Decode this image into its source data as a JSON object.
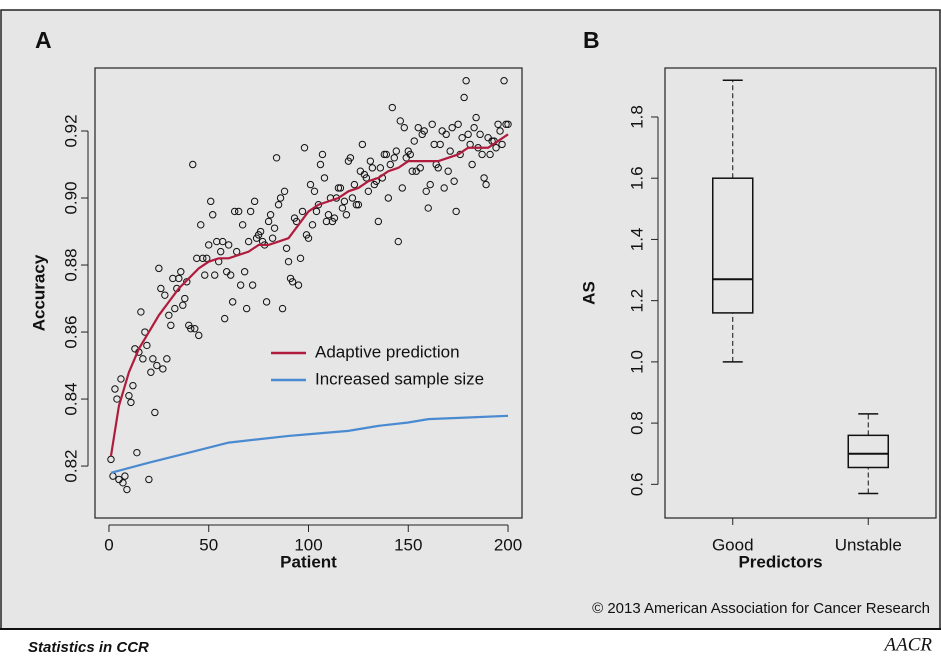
{
  "chart_data": [
    {
      "type": "scatter",
      "title": "A",
      "xlabel": "Patient",
      "ylabel": "Accuracy",
      "x": [
        1,
        2,
        3,
        4,
        5,
        6,
        7,
        8,
        9,
        10,
        11,
        12,
        13,
        14,
        15,
        16,
        17,
        18,
        19,
        20,
        21,
        22,
        23,
        24,
        25,
        26,
        27,
        28,
        29,
        30,
        31,
        32,
        33,
        34,
        35,
        36,
        37,
        38,
        39,
        40,
        41,
        42,
        43,
        44,
        45,
        46,
        47,
        48,
        49,
        50,
        51,
        52,
        53,
        54,
        55,
        56,
        57,
        58,
        59,
        60,
        61,
        62,
        63,
        64,
        65,
        66,
        67,
        68,
        69,
        70,
        71,
        72,
        73,
        74,
        75,
        76,
        77,
        78,
        79,
        80,
        81,
        82,
        83,
        84,
        85,
        86,
        87,
        88,
        89,
        90,
        91,
        92,
        93,
        94,
        95,
        96,
        97,
        98,
        99,
        100,
        101,
        102,
        103,
        104,
        105,
        106,
        107,
        108,
        109,
        110,
        111,
        112,
        113,
        114,
        115,
        116,
        117,
        118,
        119,
        120,
        121,
        122,
        123,
        124,
        125,
        126,
        127,
        128,
        129,
        130,
        131,
        132,
        133,
        134,
        135,
        136,
        137,
        138,
        139,
        140,
        141,
        142,
        143,
        144,
        145,
        146,
        147,
        148,
        149,
        150,
        151,
        152,
        153,
        154,
        155,
        156,
        157,
        158,
        159,
        160,
        161,
        162,
        163,
        164,
        165,
        166,
        167,
        168,
        169,
        170,
        171,
        172,
        173,
        174,
        175,
        176,
        177,
        178,
        179,
        180,
        181,
        182,
        183,
        184,
        185,
        186,
        187,
        188,
        189,
        190,
        191,
        192,
        193,
        194,
        195,
        196,
        197,
        198,
        199,
        200
      ],
      "values": [
        0.822,
        0.817,
        0.843,
        0.84,
        0.816,
        0.846,
        0.815,
        0.817,
        0.813,
        0.841,
        0.839,
        0.844,
        0.855,
        0.824,
        0.854,
        0.866,
        0.852,
        0.86,
        0.856,
        0.816,
        0.848,
        0.852,
        0.836,
        0.85,
        0.879,
        0.873,
        0.849,
        0.871,
        0.852,
        0.865,
        0.862,
        0.876,
        0.867,
        0.873,
        0.876,
        0.878,
        0.868,
        0.87,
        0.875,
        0.862,
        0.861,
        0.91,
        0.861,
        0.882,
        0.859,
        0.892,
        0.882,
        0.877,
        0.882,
        0.886,
        0.899,
        0.895,
        0.877,
        0.887,
        0.881,
        0.884,
        0.887,
        0.864,
        0.878,
        0.886,
        0.877,
        0.869,
        0.896,
        0.884,
        0.896,
        0.874,
        0.892,
        0.878,
        0.867,
        0.887,
        0.896,
        0.874,
        0.899,
        0.888,
        0.889,
        0.89,
        0.887,
        0.886,
        0.869,
        0.893,
        0.895,
        0.888,
        0.891,
        0.912,
        0.898,
        0.9,
        0.867,
        0.902,
        0.885,
        0.881,
        0.876,
        0.875,
        0.894,
        0.893,
        0.874,
        0.882,
        0.896,
        0.915,
        0.889,
        0.888,
        0.904,
        0.892,
        0.902,
        0.896,
        0.898,
        0.91,
        0.913,
        0.906,
        0.893,
        0.895,
        0.9,
        0.893,
        0.894,
        0.9,
        0.903,
        0.903,
        0.897,
        0.899,
        0.895,
        0.911,
        0.912,
        0.9,
        0.904,
        0.898,
        0.898,
        0.908,
        0.916,
        0.907,
        0.906,
        0.902,
        0.911,
        0.909,
        0.904,
        0.905,
        0.893,
        0.909,
        0.906,
        0.913,
        0.913,
        0.9,
        0.91,
        0.927,
        0.912,
        0.914,
        0.887,
        0.923,
        0.903,
        0.921,
        0.912,
        0.914,
        0.913,
        0.908,
        0.917,
        0.908,
        0.921,
        0.909,
        0.919,
        0.92,
        0.902,
        0.897,
        0.904,
        0.922,
        0.916,
        0.91,
        0.909,
        0.916,
        0.92,
        0.903,
        0.919,
        0.908,
        0.914,
        0.921,
        0.905,
        0.896,
        0.922,
        0.913,
        0.918,
        0.93,
        0.935,
        0.919,
        0.916,
        0.91,
        0.921,
        0.924,
        0.915,
        0.919,
        0.913,
        0.906,
        0.904,
        0.918,
        0.913,
        0.917,
        0.917,
        0.915,
        0.922,
        0.92,
        0.916,
        0.935,
        0.922,
        0.922
      ],
      "lines": [
        {
          "name": "Adaptive prediction",
          "color": "#b01c3e",
          "x": [
            1,
            5,
            10,
            15,
            20,
            25,
            30,
            35,
            40,
            45,
            50,
            55,
            60,
            65,
            70,
            75,
            80,
            85,
            90,
            95,
            100,
            105,
            110,
            115,
            120,
            125,
            130,
            135,
            140,
            145,
            150,
            155,
            160,
            165,
            170,
            175,
            180,
            185,
            190,
            195,
            200
          ],
          "values": [
            0.823,
            0.838,
            0.848,
            0.855,
            0.86,
            0.865,
            0.869,
            0.873,
            0.876,
            0.879,
            0.881,
            0.882,
            0.882,
            0.883,
            0.884,
            0.886,
            0.886,
            0.887,
            0.888,
            0.892,
            0.896,
            0.898,
            0.899,
            0.9,
            0.902,
            0.903,
            0.905,
            0.906,
            0.908,
            0.909,
            0.911,
            0.911,
            0.911,
            0.911,
            0.912,
            0.913,
            0.915,
            0.915,
            0.915,
            0.917,
            0.919
          ]
        },
        {
          "name": "Increased sample size",
          "color": "#4a8ad0",
          "x": [
            1,
            20,
            40,
            60,
            75,
            90,
            100,
            120,
            135,
            150,
            160,
            180,
            200
          ],
          "values": [
            0.818,
            0.821,
            0.824,
            0.827,
            0.828,
            0.829,
            0.8295,
            0.8305,
            0.832,
            0.833,
            0.834,
            0.8345,
            0.835
          ]
        }
      ],
      "legend": "right",
      "xlim": [
        -7,
        207
      ],
      "xticks": [
        0,
        50,
        100,
        150,
        200
      ],
      "ylim": [
        0.8045,
        0.9388
      ],
      "yticks": [
        0.82,
        0.84,
        0.86,
        0.88,
        {
          "value": 0.9,
          "label": "0.90"
        },
        0.92
      ]
    },
    {
      "type": "box",
      "title": "B",
      "xlabel": "Predictors",
      "ylabel": "AS",
      "categories": [
        "Good",
        "Unstable"
      ],
      "boxes": [
        {
          "min": 1.0,
          "q1": 1.16,
          "median": 1.27,
          "q3": 1.6,
          "max": 1.92
        },
        {
          "min": 0.57,
          "q1": 0.655,
          "median": 0.7,
          "q3": 0.76,
          "max": 0.83
        }
      ],
      "ylim": [
        0.49,
        1.96
      ],
      "yticks": [
        0.6,
        0.8,
        {
          "value": 1,
          "label": "1.0"
        },
        1.2,
        1.4,
        1.6,
        1.8
      ]
    }
  ],
  "copyright": "© 2013 American Association for Cancer Research",
  "footer": {
    "journal": "Statistics in CCR",
    "logo": "AACR"
  }
}
